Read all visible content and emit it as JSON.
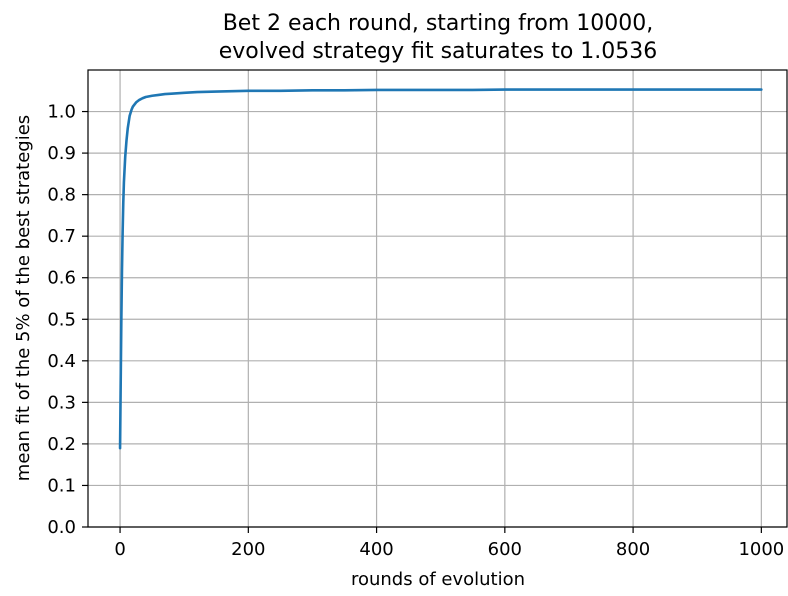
{
  "chart_data": {
    "type": "line",
    "title_lines": [
      "Bet 2 each round, starting from 10000,",
      "evolved strategy fit saturates to 1.0536"
    ],
    "xlabel": "rounds of evolution",
    "ylabel": "mean fit of the 5% of the best strategies",
    "xlim": [
      -50,
      1040
    ],
    "ylim": [
      0.0,
      1.1
    ],
    "xticks": [
      0,
      200,
      400,
      600,
      800,
      1000
    ],
    "yticks": [
      0.0,
      0.1,
      0.2,
      0.3,
      0.4,
      0.5,
      0.6,
      0.7,
      0.8,
      0.9,
      1.0
    ],
    "xtick_labels": [
      "0",
      "200",
      "400",
      "600",
      "800",
      "1000"
    ],
    "ytick_labels": [
      "0.0",
      "0.1",
      "0.2",
      "0.3",
      "0.4",
      "0.5",
      "0.6",
      "0.7",
      "0.8",
      "0.9",
      "1.0"
    ],
    "grid": true,
    "legend": false,
    "series": [
      {
        "color": "#1f77b4",
        "x": [
          0,
          1,
          2,
          3,
          4,
          5,
          6,
          8,
          10,
          12,
          15,
          18,
          20,
          25,
          30,
          35,
          40,
          50,
          60,
          70,
          80,
          100,
          120,
          150,
          200,
          250,
          300,
          350,
          400,
          450,
          500,
          550,
          600,
          650,
          700,
          750,
          800,
          850,
          900,
          950,
          1000
        ],
        "y": [
          0.19,
          0.35,
          0.5,
          0.62,
          0.71,
          0.78,
          0.83,
          0.89,
          0.93,
          0.96,
          0.99,
          1.005,
          1.012,
          1.022,
          1.028,
          1.032,
          1.035,
          1.038,
          1.04,
          1.042,
          1.043,
          1.045,
          1.047,
          1.048,
          1.05,
          1.05,
          1.051,
          1.051,
          1.052,
          1.052,
          1.052,
          1.052,
          1.053,
          1.053,
          1.053,
          1.053,
          1.053,
          1.053,
          1.053,
          1.053,
          1.053
        ]
      }
    ]
  }
}
